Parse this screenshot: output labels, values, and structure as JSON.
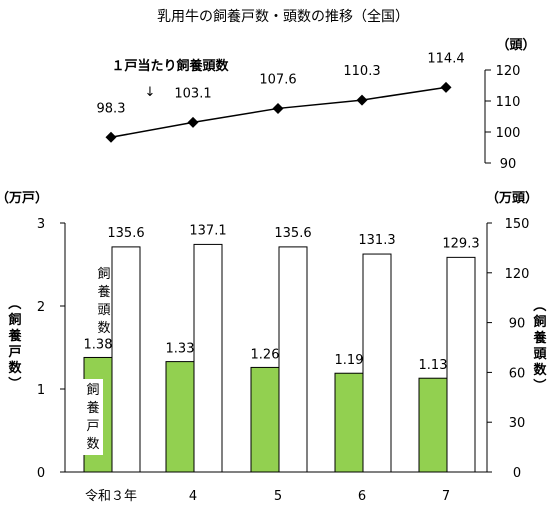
{
  "title": "乳用牛の飼養戸数・頭数の推移（全国）",
  "chart_data": [
    {
      "type": "line",
      "x": [
        "令和３年",
        "4",
        "5",
        "6",
        "7"
      ],
      "series": [
        {
          "name": "１戸当たり飼養頭数",
          "values": [
            98.3,
            103.1,
            107.6,
            110.3,
            114.4
          ]
        }
      ],
      "ylabel": "（頭）",
      "ylim": [
        90,
        120
      ],
      "yticks": [
        "90",
        "100",
        "110",
        "120"
      ],
      "marker": "diamond",
      "grid": false,
      "series_color": "#000000"
    },
    {
      "type": "bar",
      "categories": [
        "令和３年",
        "4",
        "5",
        "6",
        "7"
      ],
      "series": [
        {
          "name": "飼養戸数",
          "values": [
            1.38,
            1.33,
            1.26,
            1.19,
            1.13
          ],
          "axis": "left",
          "color": "#92d050"
        },
        {
          "name": "飼養頭数",
          "values": [
            135.6,
            137.1,
            135.6,
            131.3,
            129.3
          ],
          "axis": "right",
          "color": "#ffffff"
        }
      ],
      "left_axis": {
        "unit": "（万戸）",
        "label": "（飼養戸数）",
        "ylim": [
          0,
          3
        ],
        "ticks": [
          "0",
          "1",
          "2",
          "3"
        ]
      },
      "right_axis": {
        "unit": "（万頭）",
        "label": "（飼養頭数）",
        "ylim": [
          0,
          150
        ],
        "ticks": [
          "0",
          "30",
          "60",
          "90",
          "120",
          "150"
        ]
      },
      "grid": false
    }
  ],
  "labels": {
    "line_series": "１戸当たり飼養頭数",
    "bar_heads_inside": "飼養頭数",
    "bar_households_inside": "飼養戸数",
    "arrow": "↓"
  },
  "line_value_labels": [
    "98.3",
    "103.1",
    "107.6",
    "110.3",
    "114.4"
  ],
  "household_value_labels": [
    "1.38",
    "1.33",
    "1.26",
    "1.19",
    "1.13"
  ],
  "head_value_labels": [
    "135.6",
    "137.1",
    "135.6",
    "131.3",
    "129.3"
  ]
}
